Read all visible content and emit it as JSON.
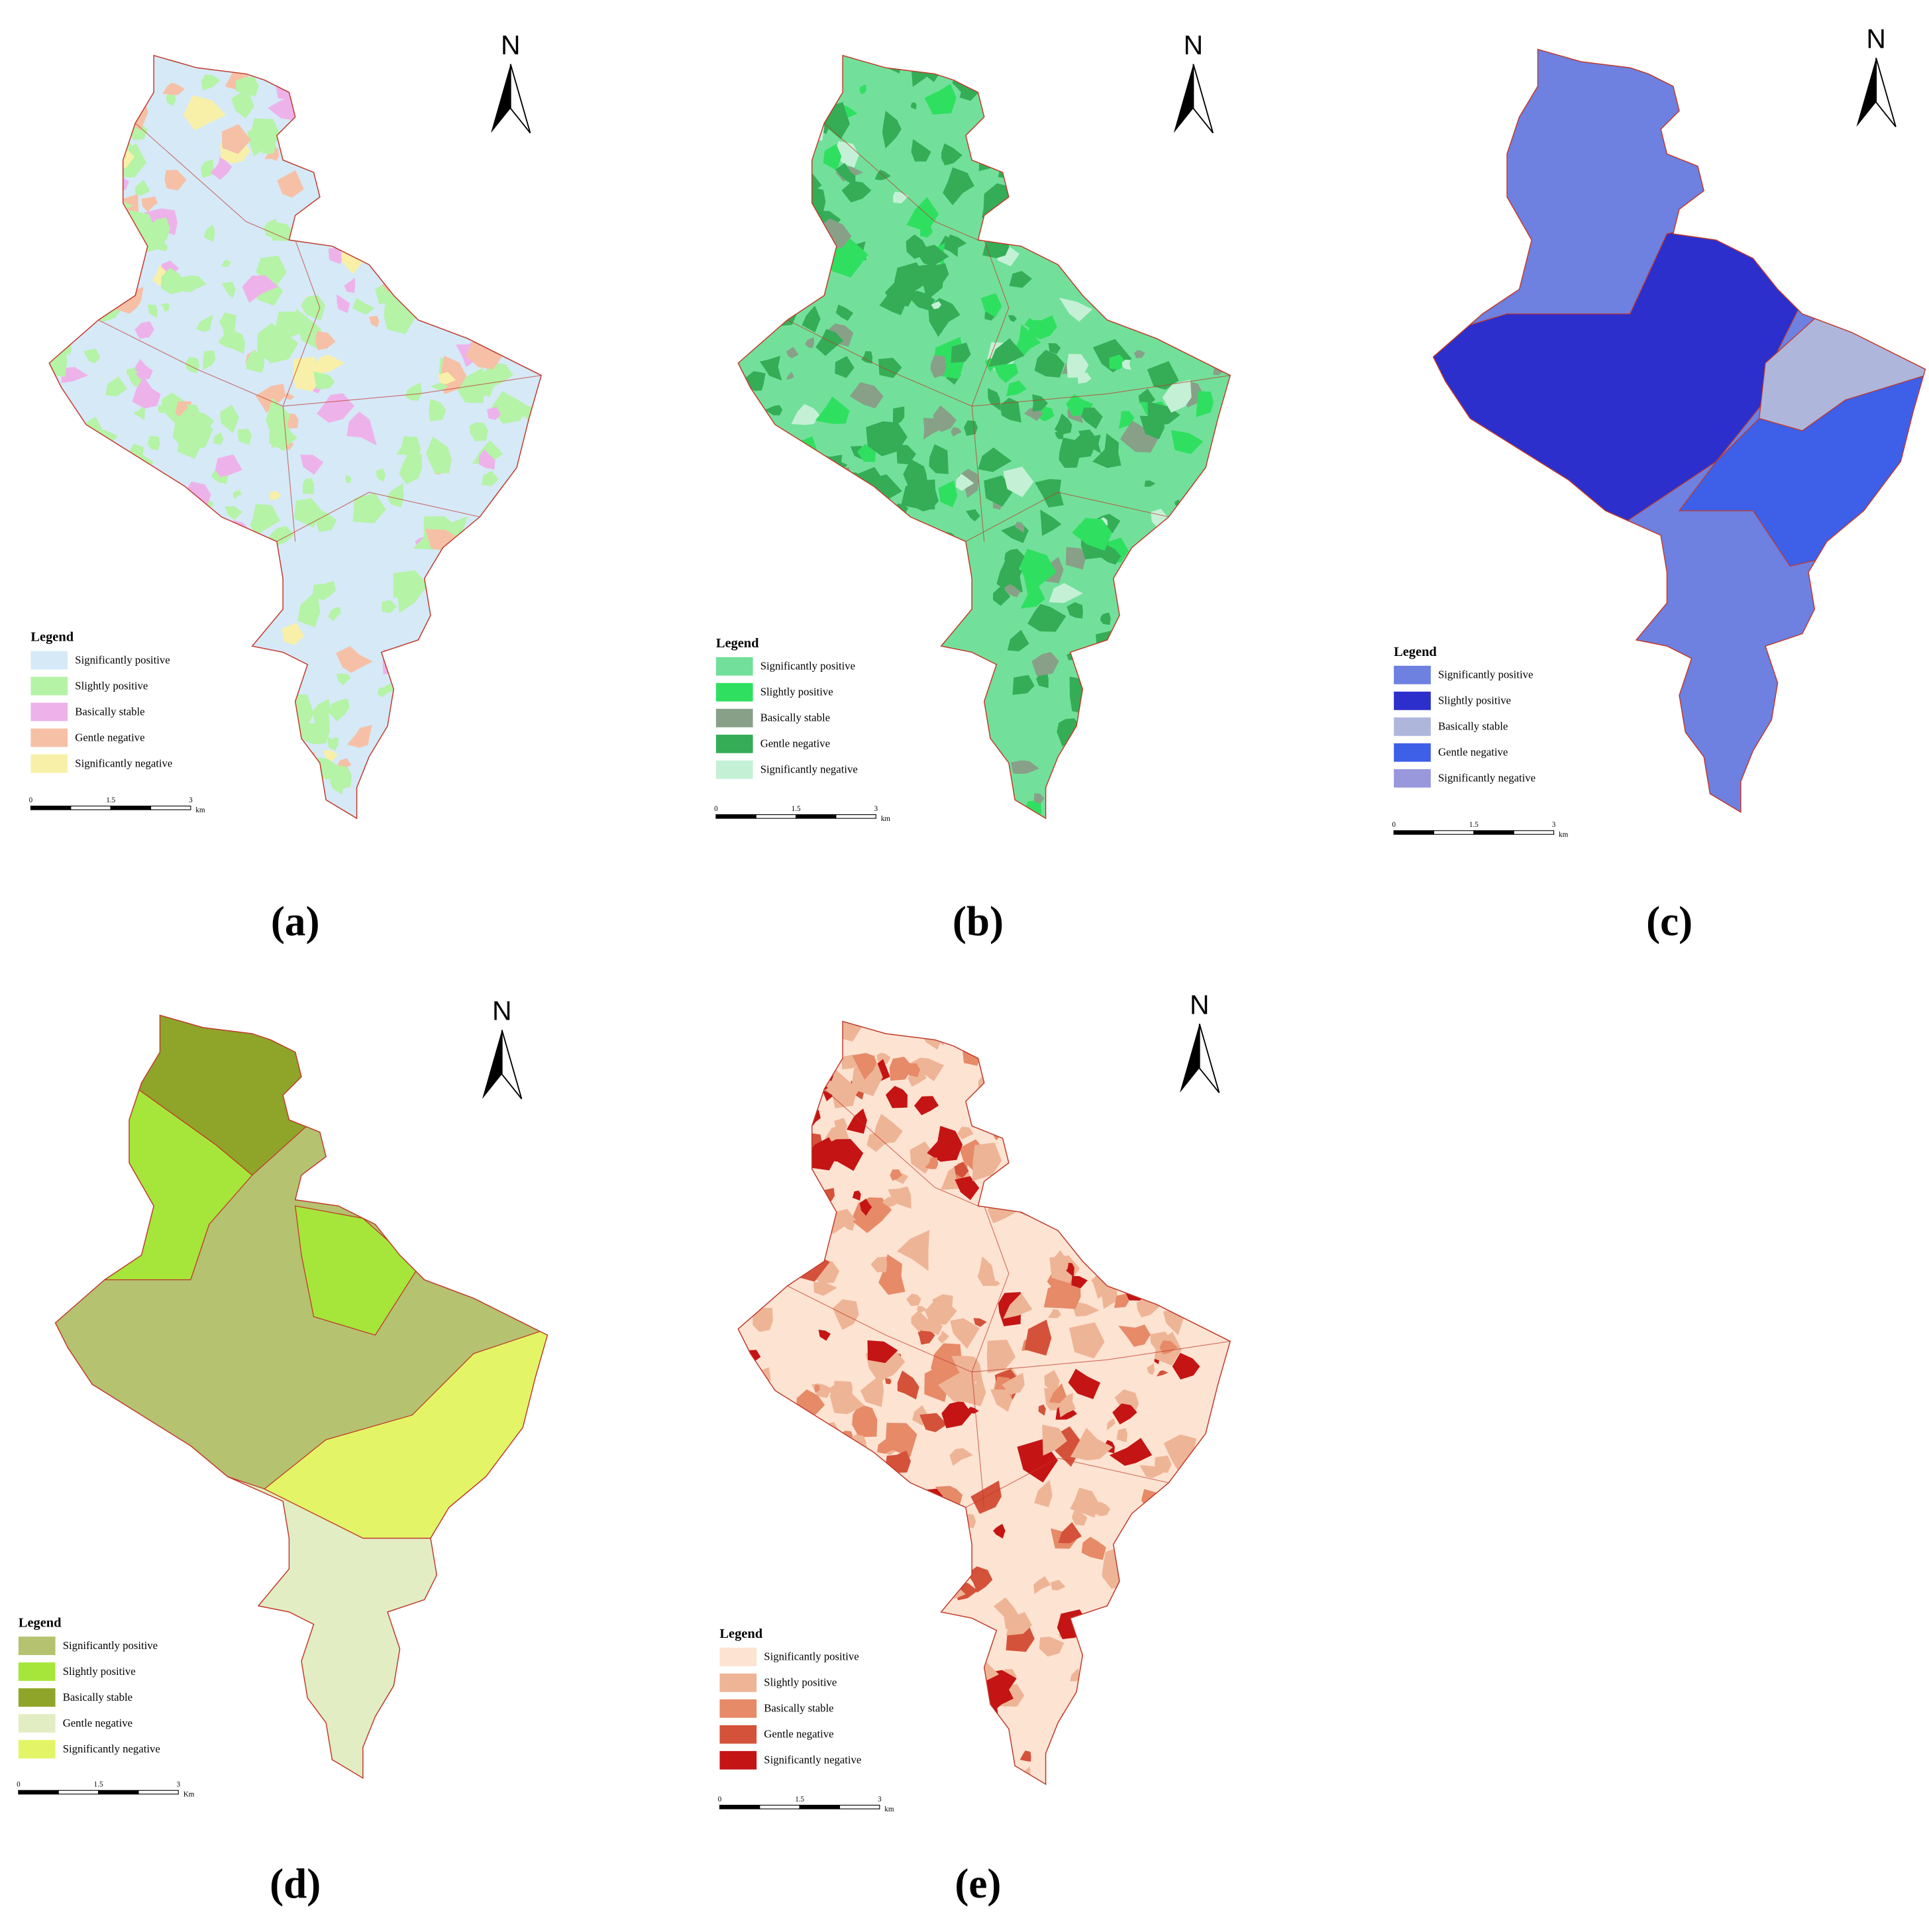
{
  "panels": [
    {
      "label": "(a)",
      "north": "N",
      "legend": {
        "title": "Legend",
        "items": [
          {
            "name": "Significantly positive",
            "color": "#d6e9f7"
          },
          {
            "name": "Slightly positive",
            "color": "#b5f3a6"
          },
          {
            "name": "Basically stable",
            "color": "#eeb2ea"
          },
          {
            "name": "Gentle negative",
            "color": "#f6c0a6"
          },
          {
            "name": "Significantly negative",
            "color": "#f8f0a8"
          }
        ]
      },
      "scale_bar": [
        "0",
        "1.5",
        "3",
        "km"
      ]
    },
    {
      "label": "(b)",
      "north": "N",
      "legend": {
        "title": "Legend",
        "items": [
          {
            "name": "Significantly positive",
            "color": "#72e09a"
          },
          {
            "name": "Slightly positive",
            "color": "#2fe060"
          },
          {
            "name": "Basically stable",
            "color": "#88a088"
          },
          {
            "name": "Gentle negative",
            "color": "#34ad56"
          },
          {
            "name": "Significantly negative",
            "color": "#c4f1d6"
          }
        ]
      },
      "scale_bar": [
        "0",
        "1.5",
        "3",
        "km"
      ]
    },
    {
      "label": "(c)",
      "north": "N",
      "legend": {
        "title": "Legend",
        "items": [
          {
            "name": "Significantly positive",
            "color": "#6e80e0"
          },
          {
            "name": "Slightly positive",
            "color": "#2c2fcc"
          },
          {
            "name": "Basically stable",
            "color": "#aeb6dc"
          },
          {
            "name": "Gentle negative",
            "color": "#3e5fe8"
          },
          {
            "name": "Significantly negative",
            "color": "#9a98dc"
          }
        ]
      },
      "scale_bar": [
        "0",
        "1.5",
        "3",
        "km"
      ]
    },
    {
      "label": "(d)",
      "north": "N",
      "legend": {
        "title": "Legend",
        "items": [
          {
            "name": "Significantly positive",
            "color": "#b5c270"
          },
          {
            "name": "Slightly positive",
            "color": "#a6e63a"
          },
          {
            "name": "Basically stable",
            "color": "#8fa52a"
          },
          {
            "name": "Gentle negative",
            "color": "#e3edc3"
          },
          {
            "name": "Significantly negative",
            "color": "#e3f566"
          }
        ]
      },
      "scale_bar": [
        "0",
        "1.5",
        "3",
        "Km"
      ]
    },
    {
      "label": "(e)",
      "north": "N",
      "legend": {
        "title": "Legend",
        "items": [
          {
            "name": "Significantly positive",
            "color": "#fde3d2"
          },
          {
            "name": "Slightly positive",
            "color": "#eeb496"
          },
          {
            "name": "Basically stable",
            "color": "#e68a68"
          },
          {
            "name": "Gentle negative",
            "color": "#d4523a"
          },
          {
            "name": "Significantly negative",
            "color": "#c41414"
          }
        ]
      },
      "scale_bar": [
        "0",
        "1.5",
        "3",
        "km"
      ]
    }
  ]
}
